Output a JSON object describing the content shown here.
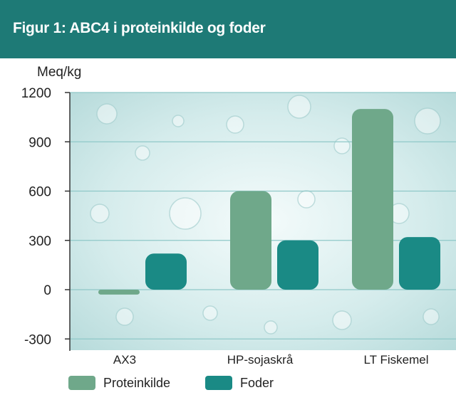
{
  "header": {
    "title": "Figur 1: ABC4 i proteinkilde og foder"
  },
  "chart_data": {
    "type": "bar",
    "title": "Figur 1: ABC4 i proteinkilde og foder",
    "ylabel": "Meq/kg",
    "xlabel": "",
    "categories": [
      "AX3",
      "HP-sojaskrå",
      "LT Fiskemel"
    ],
    "series": [
      {
        "name": "Proteinkilde",
        "values": [
          -30,
          600,
          1100
        ],
        "color": "#6fa88a"
      },
      {
        "name": "Foder",
        "values": [
          220,
          300,
          320
        ],
        "color": "#1a8a85"
      }
    ],
    "ylim": [
      -300,
      1200
    ],
    "yticks": [
      -300,
      0,
      300,
      600,
      900,
      1200
    ],
    "grid": true,
    "legend_position": "bottom",
    "colors": {
      "banner": "#1e7a76",
      "gridline": "#8fc8c8",
      "axis": "#333333"
    }
  }
}
